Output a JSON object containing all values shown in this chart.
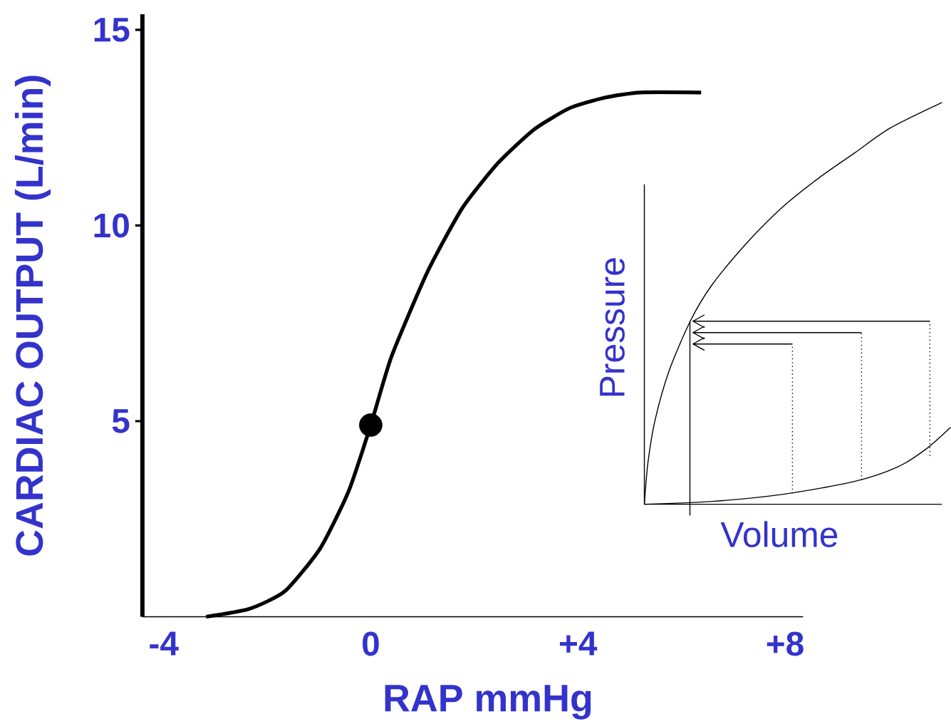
{
  "chart_data": [
    {
      "type": "line",
      "xlabel": "RAP mmHg",
      "ylabel": "CARDIAC  OUTPUT  (L/min)",
      "xlim": [
        -4.41,
        8.35
      ],
      "ylim": [
        0,
        15.4
      ],
      "xticks": [
        -4,
        0,
        {
          "value": 4,
          "label": "+4"
        },
        {
          "value": 8,
          "label": "+8"
        }
      ],
      "yticks": [
        5,
        10,
        15
      ],
      "series": [
        {
          "color": "#000000",
          "x": [
            -3.18,
            -2.35,
            -1.66,
            -0.98,
            -0.43,
            0,
            0.4,
            1.09,
            1.77,
            2.46,
            3.15,
            3.84,
            4.52,
            5.2,
            6.38
          ],
          "values": [
            0,
            0.2,
            0.65,
            1.74,
            3.2,
            4.9,
            6.65,
            8.8,
            10.45,
            11.6,
            12.45,
            13.0,
            13.27,
            13.4,
            13.4
          ]
        },
        {
          "type": "scatter",
          "marker": "circle",
          "color": "#000000",
          "x": [
            0
          ],
          "values": [
            4.9
          ]
        }
      ]
    },
    {
      "type": "other",
      "xlabel": "Volume",
      "ylabel": "Pressure"
    }
  ]
}
